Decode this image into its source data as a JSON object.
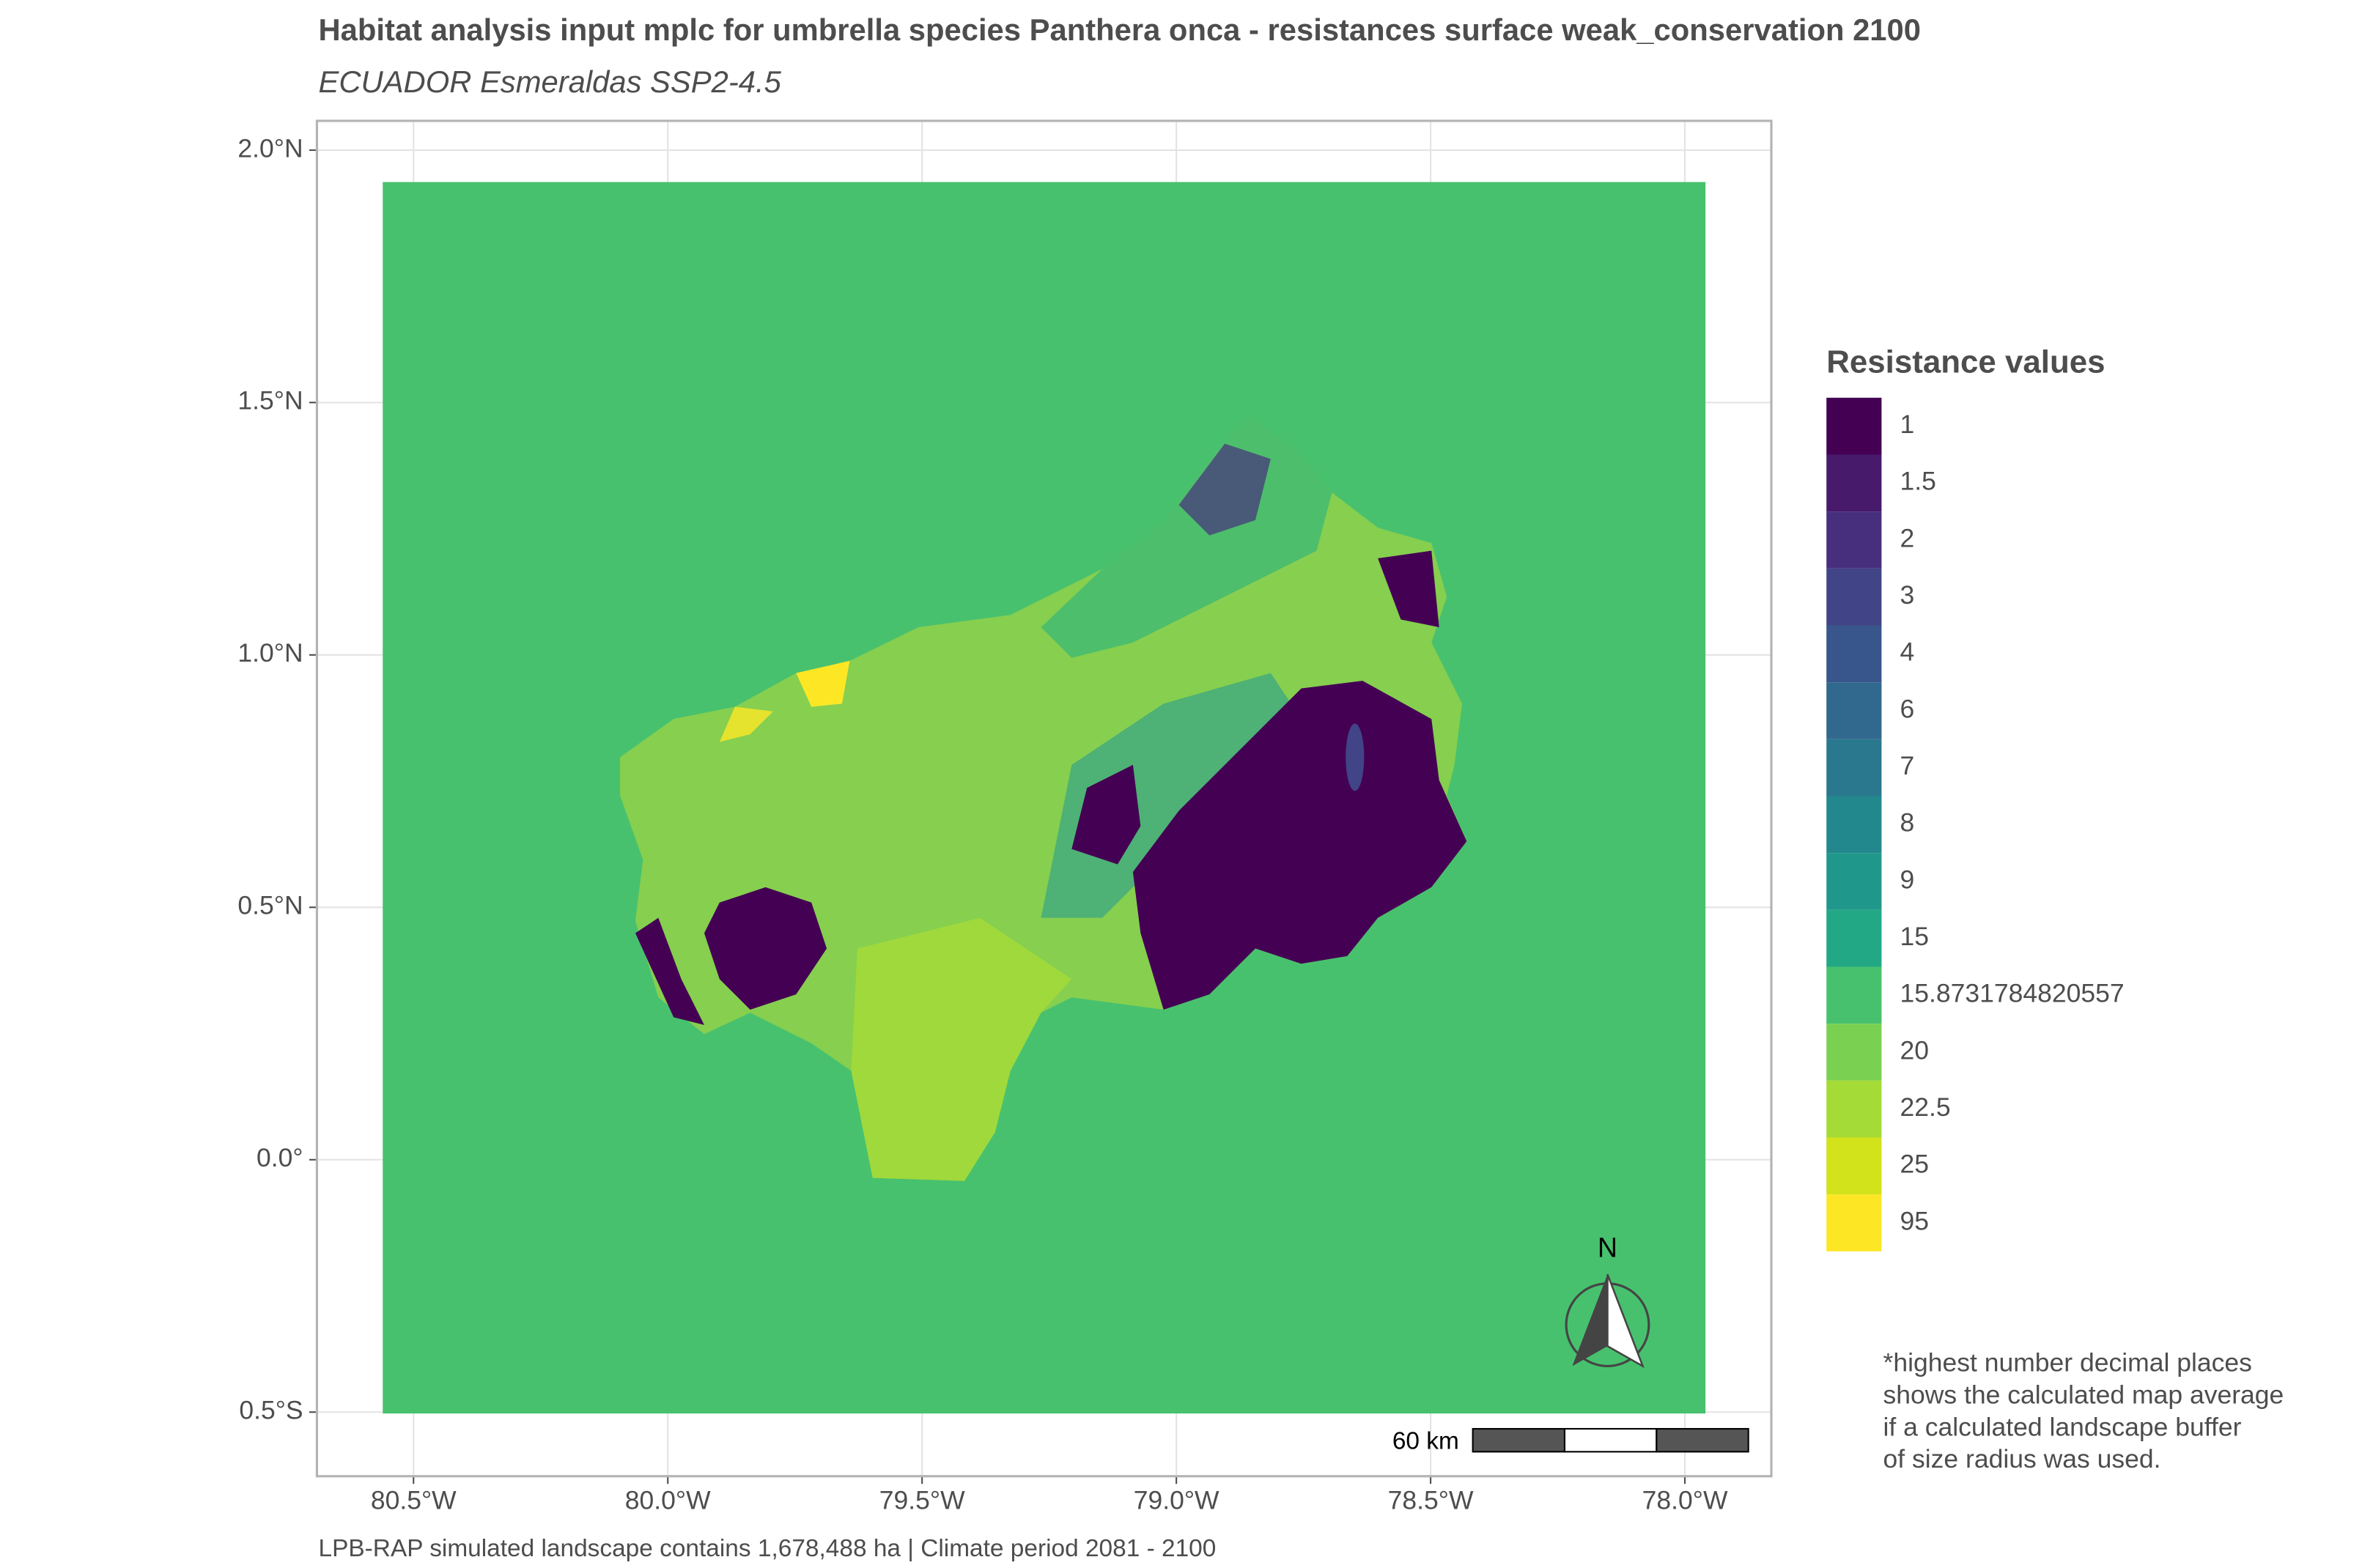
{
  "title": "Habitat analysis input mplc for umbrella species Panthera onca - resistances surface weak_conservation 2100",
  "subtitle": "ECUADOR Esmeraldas SSP2-4.5",
  "caption": "LPB-RAP simulated landscape contains 1,678,488 ha | Climate period 2081 - 2100",
  "map": {
    "xlim": [
      -80.69,
      -77.83
    ],
    "ylim": [
      -0.627,
      2.058
    ],
    "xticks": [
      {
        "value": -80.5,
        "label": "80.5°W"
      },
      {
        "value": -80.0,
        "label": "80.0°W"
      },
      {
        "value": -79.5,
        "label": "79.5°W"
      },
      {
        "value": -79.0,
        "label": "79.0°W"
      },
      {
        "value": -78.5,
        "label": "78.5°W"
      },
      {
        "value": -78.0,
        "label": "78.0°W"
      }
    ],
    "yticks": [
      {
        "value": -0.5,
        "label": "0.5°S"
      },
      {
        "value": 0.0,
        "label": "0.0°"
      },
      {
        "value": 0.5,
        "label": "0.5°N"
      },
      {
        "value": 1.0,
        "label": "1.0°N"
      },
      {
        "value": 1.5,
        "label": "1.5°N"
      },
      {
        "value": 2.0,
        "label": "2.0°N"
      }
    ],
    "grid": true
  },
  "legend": {
    "title": "Resistance values",
    "entries": [
      {
        "label": "1",
        "color": "#440154"
      },
      {
        "label": "1.5",
        "color": "#481a6c"
      },
      {
        "label": "2",
        "color": "#472f7d"
      },
      {
        "label": "3",
        "color": "#414487"
      },
      {
        "label": "4",
        "color": "#39568c"
      },
      {
        "label": "6",
        "color": "#31688e"
      },
      {
        "label": "7",
        "color": "#2a788e"
      },
      {
        "label": "8",
        "color": "#23888e"
      },
      {
        "label": "9",
        "color": "#1f988b"
      },
      {
        "label": "15",
        "color": "#22a884"
      },
      {
        "label": "15.8731784820557",
        "color": "#48c16e"
      },
      {
        "label": "20",
        "color": "#7ad151"
      },
      {
        "label": "22.5",
        "color": "#a5db36"
      },
      {
        "label": "25",
        "color": "#d2e21b"
      },
      {
        "label": "95",
        "color": "#fde725"
      }
    ]
  },
  "north_label": "N",
  "scale_label": "60 km",
  "note": [
    "*highest number decimal places",
    "shows the calculated map average",
    "if a calculated landscape buffer",
    "of size radius was used."
  ]
}
